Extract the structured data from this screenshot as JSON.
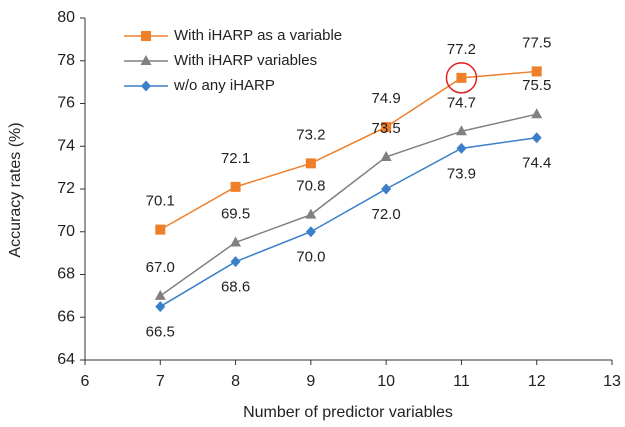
{
  "chart_data": {
    "type": "line",
    "x_label": "Number of predictor variables",
    "y_label": "Accuracy rates (%)",
    "x": [
      7,
      8,
      9,
      10,
      11,
      12
    ],
    "xlim": [
      6,
      13
    ],
    "xticks": [
      6,
      7,
      8,
      9,
      10,
      11,
      12,
      13
    ],
    "ylim": [
      64,
      80
    ],
    "yticks": [
      64,
      66,
      68,
      70,
      72,
      74,
      76,
      78,
      80
    ],
    "grid": false,
    "legend": "top-left",
    "series": [
      {
        "name": "With iHARP as a variable",
        "color": "#f07f2a",
        "marker": "square",
        "label_position": "above",
        "values": [
          70.1,
          72.1,
          73.2,
          74.9,
          77.2,
          77.5
        ],
        "value_labels": [
          "70.1",
          "72.1",
          "73.2",
          "74.9",
          "77.2",
          "77.5"
        ]
      },
      {
        "name": "With iHARP variables",
        "color": "#808080",
        "marker": "triangle",
        "label_position": "above",
        "values": [
          67.0,
          69.5,
          70.8,
          73.5,
          74.7,
          75.5
        ],
        "value_labels": [
          "67.0",
          "69.5",
          "70.8",
          "73.5",
          "74.7",
          "75.5"
        ]
      },
      {
        "name": "w/o any iHARP",
        "color": "#3a7fc8",
        "marker": "diamond",
        "label_position": "below",
        "values": [
          66.5,
          68.6,
          70.0,
          72.0,
          73.9,
          74.4
        ],
        "value_labels": [
          "66.5",
          "68.6",
          "70.0",
          "72.0",
          "73.9",
          "74.4"
        ]
      }
    ],
    "highlight": {
      "series": 0,
      "index": 4,
      "color": "#e02020"
    }
  }
}
